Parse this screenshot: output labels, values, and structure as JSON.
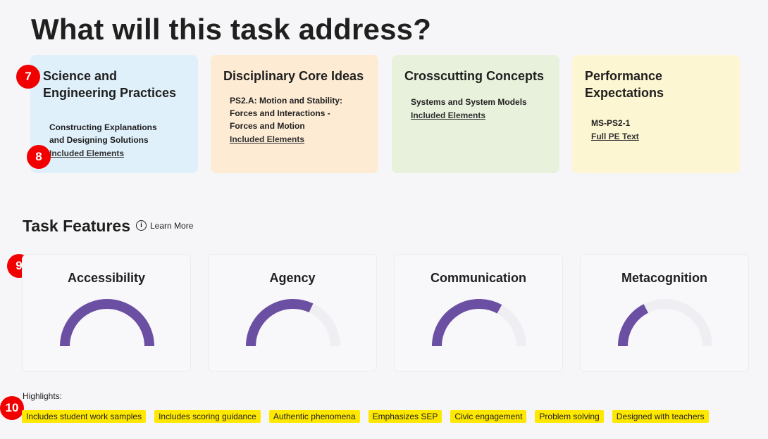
{
  "page_title": "What will this task address?",
  "cards": [
    {
      "title": "Science and Engineering Practices",
      "body": "Constructing Explanations and Designing Solutions",
      "link": "Included Elements",
      "bg": "#e0f0fb"
    },
    {
      "title": "Disciplinary Core Ideas",
      "body": "PS2.A: Motion and Stability: Forces and Interactions - Forces and Motion",
      "link": "Included Elements",
      "bg": "#fdebd3"
    },
    {
      "title": "Crosscutting Concepts",
      "body": "Systems and System Models",
      "link": "Included Elements",
      "bg": "#e8f1dc"
    },
    {
      "title": "Performance Expectations",
      "body": "MS-PS2-1",
      "link": "Full PE Text",
      "bg": "#fdf6d2"
    }
  ],
  "task_features": {
    "title": "Task Features",
    "learn_more": "Learn More",
    "info_icon": "info-circle-icon",
    "gauge_color": "#6b4fa3",
    "track_color": "#efeff3",
    "items": [
      {
        "label": "Accessibility",
        "level": 1.0
      },
      {
        "label": "Agency",
        "level": 0.64
      },
      {
        "label": "Communication",
        "level": 0.66
      },
      {
        "label": "Metacognition",
        "level": 0.35
      }
    ]
  },
  "highlights": {
    "label": "Highlights:",
    "chips": [
      "Includes student work samples",
      "Includes scoring guidance",
      "Authentic phenomena",
      "Emphasizes SEP",
      "Civic engagement",
      "Problem solving",
      "Designed with teachers"
    ]
  },
  "annotations": [
    "7",
    "8",
    "9",
    "10"
  ]
}
